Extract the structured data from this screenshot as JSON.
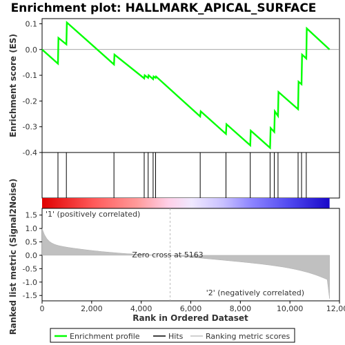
{
  "chart_data": {
    "type": "line",
    "title": "Enrichment plot: HALLMARK_APICAL_SURFACE",
    "xlabel": "Rank in Ordered Dataset",
    "ylabel_top": "Enrichment score (ES)",
    "ylabel_bottom": "Ranked list metric (Signal2Noise)",
    "xlim": [
      0,
      12000
    ],
    "x_ticks": [
      0,
      2000,
      4000,
      6000,
      8000,
      10000,
      12000
    ],
    "x_tick_labels": [
      "0",
      "2,000",
      "4,000",
      "6,000",
      "8,000",
      "10,000",
      "12,000"
    ],
    "es_ylim": [
      -0.4,
      0.12
    ],
    "es_ticks": [
      -0.4,
      -0.3,
      -0.2,
      -0.1,
      0.0,
      0.1
    ],
    "es_tick_labels": [
      "-0.4",
      "-0.3",
      "-0.2",
      "-0.1",
      "0.0",
      "0.1"
    ],
    "metric_ylim": [
      -1.7,
      1.75
    ],
    "metric_ticks": [
      -1.5,
      -1.0,
      -0.5,
      0.0,
      0.5,
      1.0,
      1.5
    ],
    "metric_tick_labels": [
      "-1.5",
      "-1.0",
      "-0.5",
      "0.0",
      "0.5",
      "1.0",
      "1.5"
    ],
    "total_rank": 11600,
    "zero_cross_rank": 5163,
    "zero_cross_label": "Zero cross at 5163",
    "positive_label": "'1' (positively correlated)",
    "negative_label": "'2' (negatively correlated)",
    "hits": [
      640,
      980,
      2900,
      4120,
      4280,
      4480,
      4580,
      6380,
      7420,
      8400,
      9200,
      9370,
      9520,
      10330,
      10470,
      10660
    ],
    "enrichment_profile": {
      "name": "Enrichment profile",
      "color": "#00ff00",
      "points": [
        [
          0,
          0.0
        ],
        [
          640,
          -0.055
        ],
        [
          660,
          0.045
        ],
        [
          980,
          0.02
        ],
        [
          1000,
          0.105
        ],
        [
          2900,
          -0.058
        ],
        [
          2920,
          -0.02
        ],
        [
          4120,
          -0.112
        ],
        [
          4140,
          -0.1
        ],
        [
          4280,
          -0.11
        ],
        [
          4300,
          -0.1
        ],
        [
          4480,
          -0.115
        ],
        [
          4500,
          -0.105
        ],
        [
          4580,
          -0.11
        ],
        [
          4600,
          -0.105
        ],
        [
          6380,
          -0.26
        ],
        [
          6400,
          -0.24
        ],
        [
          7420,
          -0.328
        ],
        [
          7440,
          -0.29
        ],
        [
          8400,
          -0.372
        ],
        [
          8420,
          -0.315
        ],
        [
          9200,
          -0.382
        ],
        [
          9220,
          -0.305
        ],
        [
          9370,
          -0.32
        ],
        [
          9390,
          -0.24
        ],
        [
          9520,
          -0.258
        ],
        [
          9540,
          -0.165
        ],
        [
          10330,
          -0.232
        ],
        [
          10350,
          -0.125
        ],
        [
          10470,
          -0.135
        ],
        [
          10490,
          -0.02
        ],
        [
          10660,
          -0.035
        ],
        [
          10680,
          0.082
        ],
        [
          11600,
          0.0
        ]
      ]
    },
    "legend": [
      {
        "label": "Enrichment profile",
        "color": "#00ff00"
      },
      {
        "label": "Hits",
        "color": "#000000"
      },
      {
        "label": "Ranking metric scores",
        "color": "#c0c0c0"
      }
    ],
    "colors": {
      "profile": "#00ff00",
      "metric_fill": "#c0c0c0",
      "positive_label": "#ff0000",
      "negative_label": "#0000ff"
    }
  }
}
